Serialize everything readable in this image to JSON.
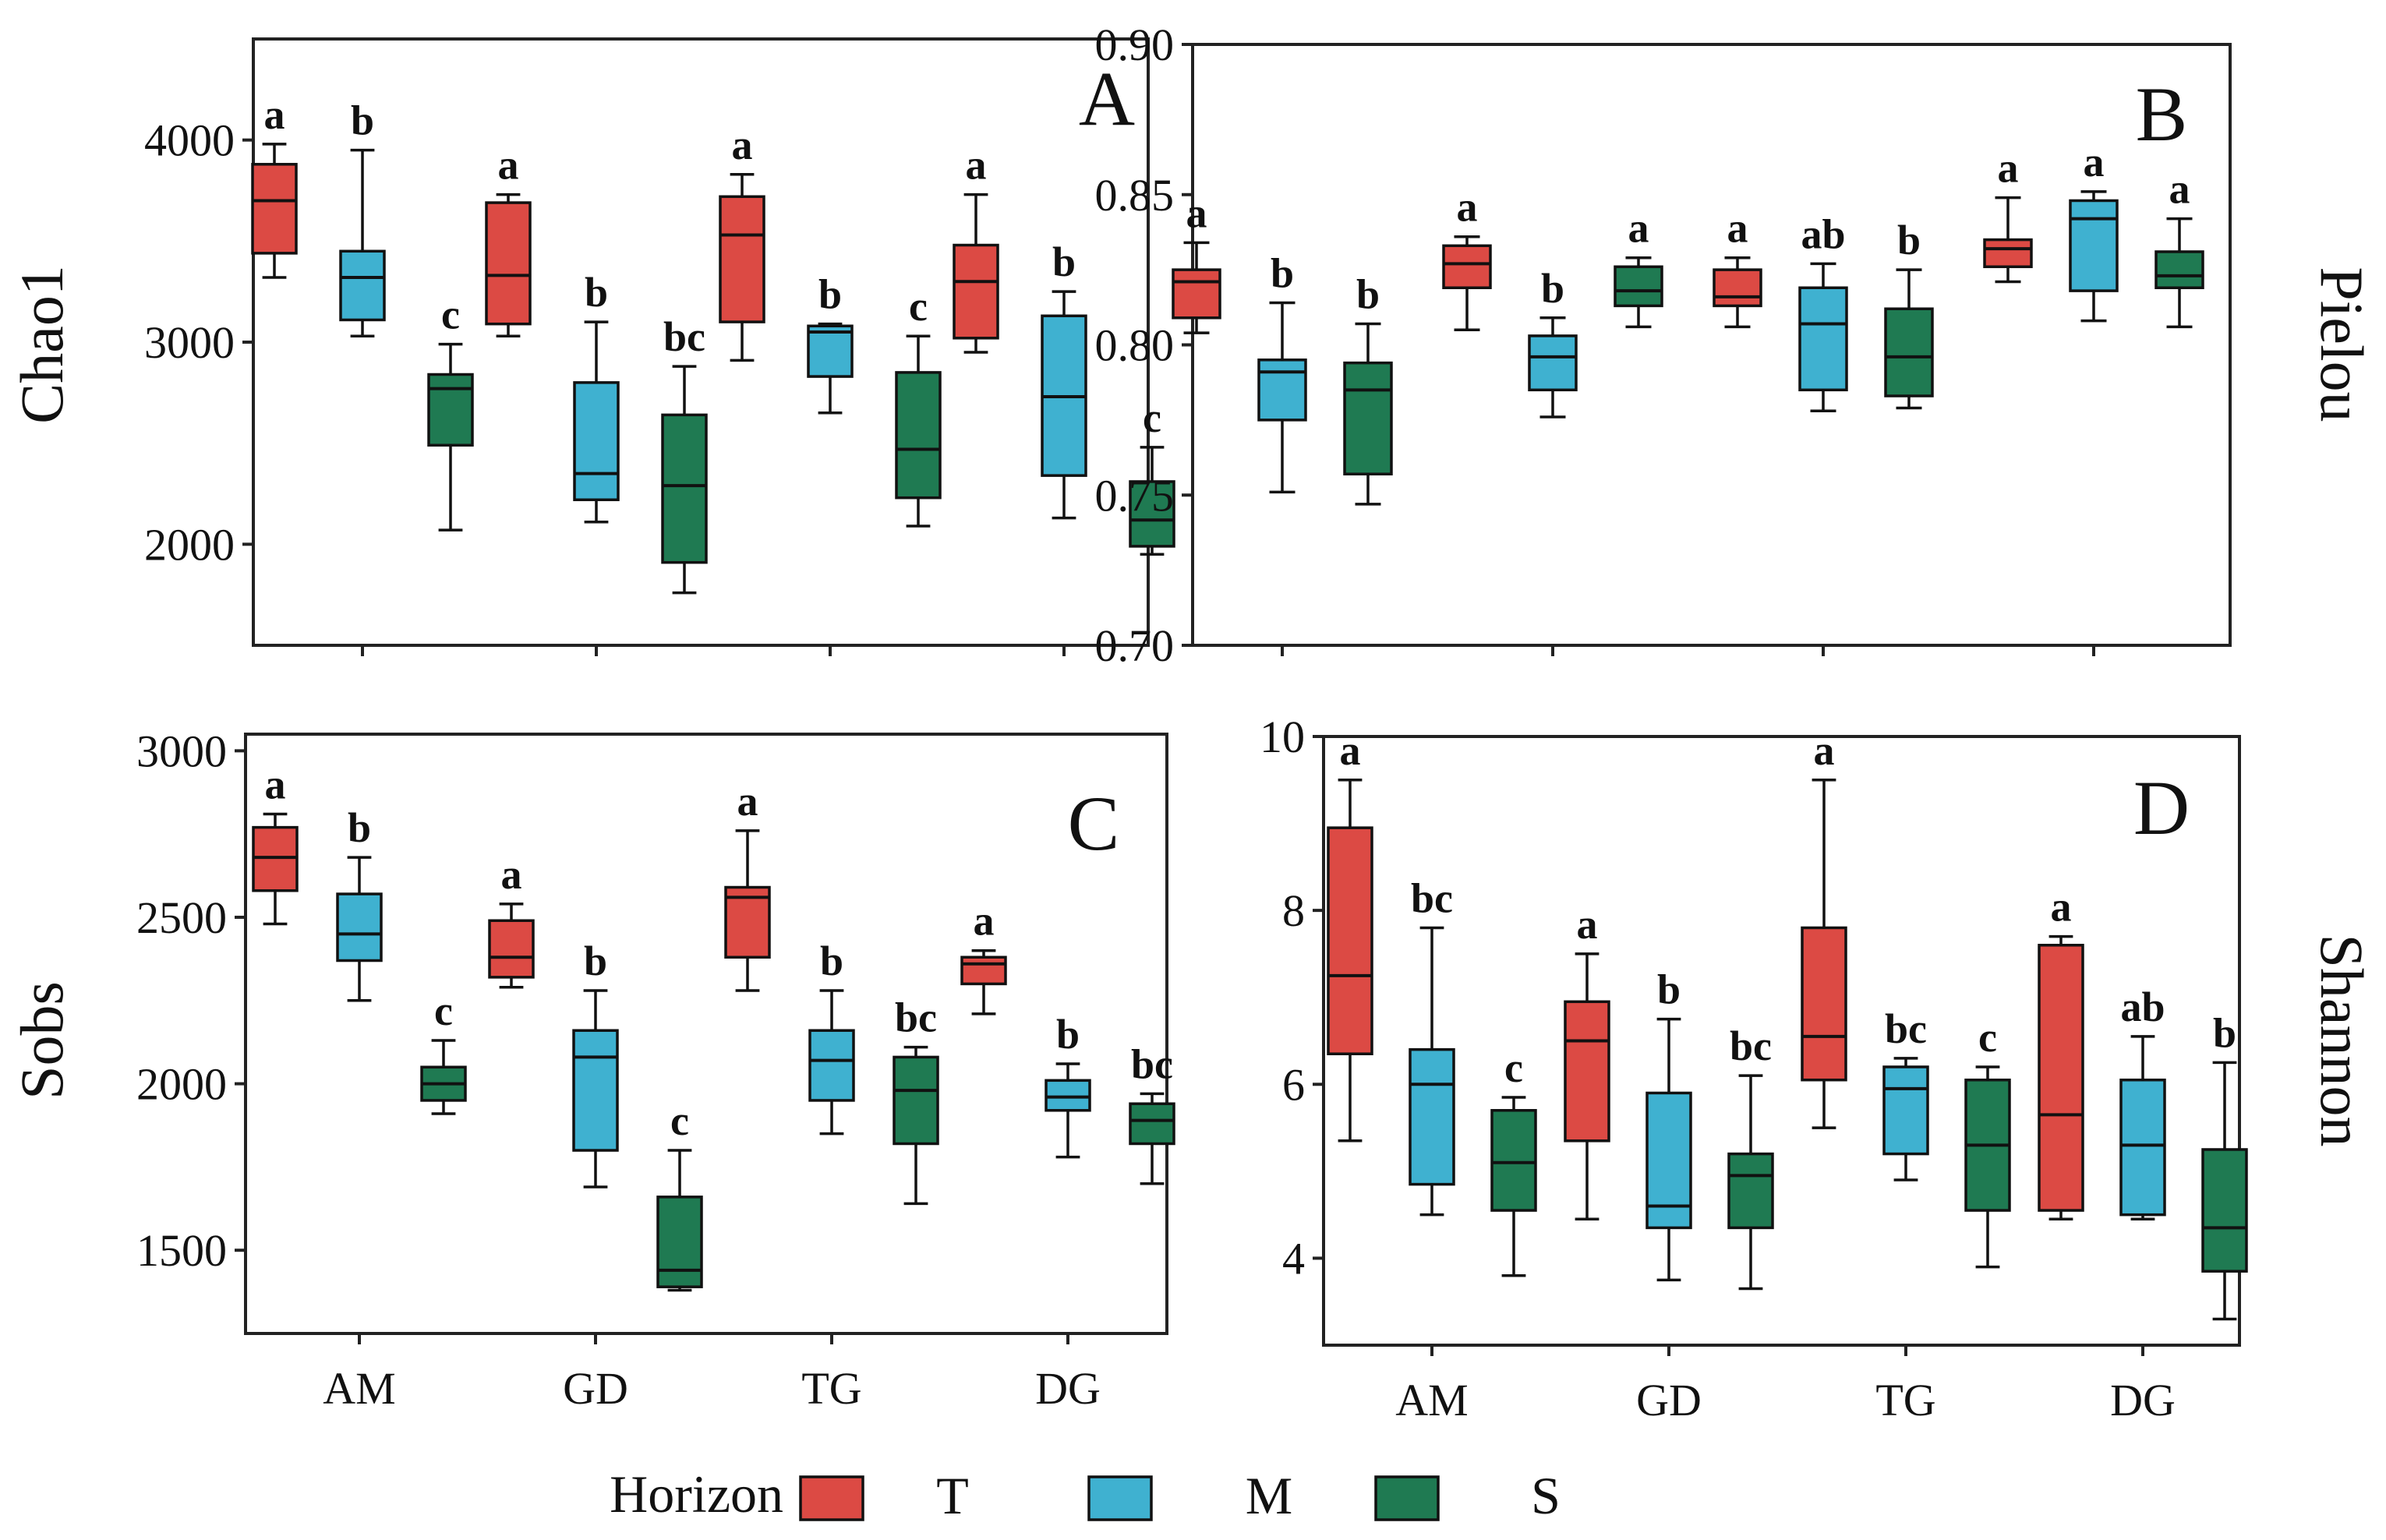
{
  "colors": {
    "T": "#dc4a44",
    "M": "#3fb1d0",
    "S": "#1f7a52"
  },
  "legend": {
    "title": "Horizon",
    "entries": [
      {
        "key": "T",
        "label": "T"
      },
      {
        "key": "M",
        "label": "M"
      },
      {
        "key": "S",
        "label": "S"
      }
    ]
  },
  "chart_data": [
    {
      "type": "box",
      "panel": "A",
      "ylabel": "Chao1",
      "ylabel_side": "left",
      "xlabel": "",
      "ylim": [
        1500,
        4500
      ],
      "yticks": [
        2000,
        3000,
        4000
      ],
      "ytick_labels": [
        "2000",
        "3000",
        "4000"
      ],
      "categories": [
        "AM",
        "GD",
        "TG",
        "DG"
      ],
      "series": [
        {
          "name": "T",
          "boxes": [
            {
              "min": 3320,
              "q1": 3440,
              "median": 3700,
              "q3": 3880,
              "max": 3980,
              "sig": "a"
            },
            {
              "min": 3030,
              "q1": 3090,
              "median": 3330,
              "q3": 3690,
              "max": 3730,
              "sig": "a"
            },
            {
              "min": 2910,
              "q1": 3100,
              "median": 3530,
              "q3": 3720,
              "max": 3830,
              "sig": "a"
            },
            {
              "min": 2950,
              "q1": 3020,
              "median": 3300,
              "q3": 3480,
              "max": 3730,
              "sig": "a"
            }
          ]
        },
        {
          "name": "M",
          "boxes": [
            {
              "min": 3030,
              "q1": 3110,
              "median": 3320,
              "q3": 3450,
              "max": 3950,
              "sig": "b"
            },
            {
              "min": 2110,
              "q1": 2220,
              "median": 2350,
              "q3": 2800,
              "max": 3100,
              "sig": "b"
            },
            {
              "min": 2650,
              "q1": 2830,
              "median": 3050,
              "q3": 3080,
              "max": 3090,
              "sig": "b"
            },
            {
              "min": 2130,
              "q1": 2340,
              "median": 2730,
              "q3": 3130,
              "max": 3250,
              "sig": "b"
            }
          ]
        },
        {
          "name": "S",
          "boxes": [
            {
              "min": 2070,
              "q1": 2490,
              "median": 2770,
              "q3": 2840,
              "max": 2990,
              "sig": "c"
            },
            {
              "min": 1760,
              "q1": 1910,
              "median": 2290,
              "q3": 2640,
              "max": 2880,
              "sig": "bc"
            },
            {
              "min": 2090,
              "q1": 2230,
              "median": 2470,
              "q3": 2850,
              "max": 3030,
              "sig": "c"
            },
            {
              "min": 1950,
              "q1": 1990,
              "median": 2120,
              "q3": 2310,
              "max": 2480,
              "sig": "c"
            }
          ]
        }
      ]
    },
    {
      "type": "box",
      "panel": "B",
      "ylabel": "Pielou",
      "ylabel_side": "right",
      "xlabel": "",
      "ylim": [
        0.7,
        0.9
      ],
      "yticks": [
        0.7,
        0.75,
        0.8,
        0.85,
        0.9
      ],
      "ytick_labels": [
        "0.70",
        "0.75",
        "0.80",
        "0.85",
        "0.90"
      ],
      "categories": [
        "AM",
        "GD",
        "TG",
        "DG"
      ],
      "series": [
        {
          "name": "T",
          "boxes": [
            {
              "min": 0.804,
              "q1": 0.809,
              "median": 0.821,
              "q3": 0.825,
              "max": 0.834,
              "sig": "a"
            },
            {
              "min": 0.805,
              "q1": 0.819,
              "median": 0.827,
              "q3": 0.833,
              "max": 0.836,
              "sig": "a"
            },
            {
              "min": 0.806,
              "q1": 0.813,
              "median": 0.816,
              "q3": 0.825,
              "max": 0.829,
              "sig": "a"
            },
            {
              "min": 0.821,
              "q1": 0.826,
              "median": 0.832,
              "q3": 0.835,
              "max": 0.849,
              "sig": "a"
            }
          ]
        },
        {
          "name": "M",
          "boxes": [
            {
              "min": 0.751,
              "q1": 0.775,
              "median": 0.791,
              "q3": 0.795,
              "max": 0.814,
              "sig": "b"
            },
            {
              "min": 0.776,
              "q1": 0.785,
              "median": 0.796,
              "q3": 0.803,
              "max": 0.809,
              "sig": "b"
            },
            {
              "min": 0.778,
              "q1": 0.785,
              "median": 0.807,
              "q3": 0.819,
              "max": 0.827,
              "sig": "ab"
            },
            {
              "min": 0.808,
              "q1": 0.818,
              "median": 0.842,
              "q3": 0.848,
              "max": 0.851,
              "sig": "a"
            }
          ]
        },
        {
          "name": "S",
          "boxes": [
            {
              "min": 0.747,
              "q1": 0.757,
              "median": 0.785,
              "q3": 0.794,
              "max": 0.807,
              "sig": "b"
            },
            {
              "min": 0.806,
              "q1": 0.813,
              "median": 0.818,
              "q3": 0.826,
              "max": 0.829,
              "sig": "a"
            },
            {
              "min": 0.779,
              "q1": 0.783,
              "median": 0.796,
              "q3": 0.812,
              "max": 0.825,
              "sig": "b"
            },
            {
              "min": 0.806,
              "q1": 0.819,
              "median": 0.823,
              "q3": 0.831,
              "max": 0.842,
              "sig": "a"
            }
          ]
        }
      ]
    },
    {
      "type": "box",
      "panel": "C",
      "ylabel": "Sobs",
      "ylabel_side": "left",
      "xlabel": "",
      "ylim": [
        1250,
        3050
      ],
      "yticks": [
        1500,
        2000,
        2500,
        3000
      ],
      "ytick_labels": [
        "1500",
        "2000",
        "2500",
        "3000"
      ],
      "categories": [
        "AM",
        "GD",
        "TG",
        "DG"
      ],
      "series": [
        {
          "name": "T",
          "boxes": [
            {
              "min": 2480,
              "q1": 2580,
              "median": 2680,
              "q3": 2770,
              "max": 2810,
              "sig": "a"
            },
            {
              "min": 2290,
              "q1": 2320,
              "median": 2380,
              "q3": 2490,
              "max": 2540,
              "sig": "a"
            },
            {
              "min": 2280,
              "q1": 2380,
              "median": 2560,
              "q3": 2590,
              "max": 2760,
              "sig": "a"
            },
            {
              "min": 2210,
              "q1": 2300,
              "median": 2360,
              "q3": 2380,
              "max": 2400,
              "sig": "a"
            }
          ]
        },
        {
          "name": "M",
          "boxes": [
            {
              "min": 2250,
              "q1": 2370,
              "median": 2450,
              "q3": 2570,
              "max": 2680,
              "sig": "b"
            },
            {
              "min": 1690,
              "q1": 1800,
              "median": 2080,
              "q3": 2160,
              "max": 2280,
              "sig": "b"
            },
            {
              "min": 1850,
              "q1": 1950,
              "median": 2070,
              "q3": 2160,
              "max": 2280,
              "sig": "b"
            },
            {
              "min": 1780,
              "q1": 1920,
              "median": 1960,
              "q3": 2010,
              "max": 2060,
              "sig": "b"
            }
          ]
        },
        {
          "name": "S",
          "boxes": [
            {
              "min": 1910,
              "q1": 1950,
              "median": 2000,
              "q3": 2050,
              "max": 2130,
              "sig": "c"
            },
            {
              "min": 1380,
              "q1": 1390,
              "median": 1440,
              "q3": 1660,
              "max": 1800,
              "sig": "c"
            },
            {
              "min": 1640,
              "q1": 1820,
              "median": 1980,
              "q3": 2080,
              "max": 2110,
              "sig": "bc"
            },
            {
              "min": 1700,
              "q1": 1820,
              "median": 1890,
              "q3": 1940,
              "max": 1970,
              "sig": "bc"
            }
          ]
        }
      ]
    },
    {
      "type": "box",
      "panel": "D",
      "ylabel": "Shannon",
      "ylabel_side": "right",
      "xlabel": "",
      "ylim": [
        3,
        10
      ],
      "yticks": [
        4,
        6,
        8,
        10
      ],
      "ytick_labels": [
        "4",
        "6",
        "8",
        "10"
      ],
      "categories": [
        "AM",
        "GD",
        "TG",
        "DG"
      ],
      "series": [
        {
          "name": "T",
          "boxes": [
            {
              "min": 5.35,
              "q1": 6.35,
              "median": 7.25,
              "q3": 8.95,
              "max": 9.5,
              "sig": "a"
            },
            {
              "min": 4.45,
              "q1": 5.35,
              "median": 6.5,
              "q3": 6.95,
              "max": 7.5,
              "sig": "a"
            },
            {
              "min": 5.5,
              "q1": 6.05,
              "median": 6.55,
              "q3": 7.8,
              "max": 9.5,
              "sig": "a"
            },
            {
              "min": 4.45,
              "q1": 4.55,
              "median": 5.65,
              "q3": 7.6,
              "max": 7.7,
              "sig": "a"
            }
          ]
        },
        {
          "name": "M",
          "boxes": [
            {
              "min": 4.5,
              "q1": 4.85,
              "median": 6.0,
              "q3": 6.4,
              "max": 7.8,
              "sig": "bc"
            },
            {
              "min": 3.75,
              "q1": 4.35,
              "median": 4.6,
              "q3": 5.9,
              "max": 6.75,
              "sig": "b"
            },
            {
              "min": 4.9,
              "q1": 5.2,
              "median": 5.95,
              "q3": 6.2,
              "max": 6.3,
              "sig": "bc"
            },
            {
              "min": 4.45,
              "q1": 4.5,
              "median": 5.3,
              "q3": 6.05,
              "max": 6.55,
              "sig": "ab"
            }
          ]
        },
        {
          "name": "S",
          "boxes": [
            {
              "min": 3.8,
              "q1": 4.55,
              "median": 5.1,
              "q3": 5.7,
              "max": 5.85,
              "sig": "c"
            },
            {
              "min": 3.65,
              "q1": 4.35,
              "median": 4.95,
              "q3": 5.2,
              "max": 6.1,
              "sig": "bc"
            },
            {
              "min": 3.9,
              "q1": 4.55,
              "median": 5.3,
              "q3": 6.05,
              "max": 6.2,
              "sig": "c"
            },
            {
              "min": 3.3,
              "q1": 3.85,
              "median": 4.35,
              "q3": 5.25,
              "max": 6.25,
              "sig": "b"
            }
          ]
        }
      ]
    }
  ]
}
